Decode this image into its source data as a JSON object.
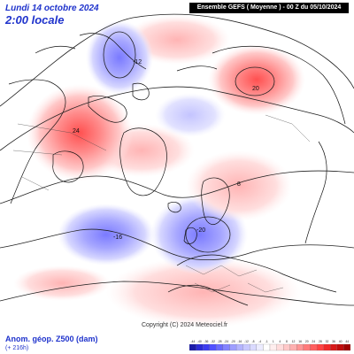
{
  "header": {
    "date": "Lundi 14 octobre 2024",
    "time": "2:00 locale",
    "run_info": "Ensemble GEFS  ( Moyenne )  - 00 Z du 05/10/2024"
  },
  "footer": {
    "field_label": "Anom. géop. Z500 (dam)",
    "lead_time": "(+ 216h)",
    "copyright": "Copyright (C) 2024 Meteociel.fr"
  },
  "legend": {
    "ticks": [
      "-44",
      "-40",
      "-36",
      "-32",
      "-28",
      "-24",
      "-20",
      "-16",
      "-12",
      "-8",
      "-4",
      "-1",
      "1",
      "4",
      "8",
      "12",
      "16",
      "20",
      "24",
      "28",
      "32",
      "36",
      "40",
      "44"
    ],
    "colors": [
      "#1a1aa8",
      "#2b2bd6",
      "#3c3cf0",
      "#5050ff",
      "#6a6aff",
      "#8484ff",
      "#9e9eff",
      "#b4b4ff",
      "#c8c8ff",
      "#dadaff",
      "#ececff",
      "#ffffff",
      "#ffeeee",
      "#ffdcdc",
      "#ffc8c8",
      "#ffb0b0",
      "#ff9696",
      "#ff7a7a",
      "#ff5e5e",
      "#ff4242",
      "#f02828",
      "#d81818",
      "#c00c0c",
      "#a00000"
    ]
  },
  "anomalies": [
    {
      "name": "alaska-negative",
      "label": "-12",
      "sign": "negative",
      "intensity": 0.55
    },
    {
      "name": "canada-positive",
      "label": "24",
      "sign": "positive",
      "intensity": 0.7
    },
    {
      "name": "siberia-positive",
      "label": "20",
      "sign": "positive",
      "intensity": 0.65
    },
    {
      "name": "atlantic-negative",
      "label": "-16",
      "sign": "negative",
      "intensity": 0.6
    },
    {
      "name": "europe-negative",
      "label": "-20",
      "sign": "negative",
      "intensity": 0.7
    },
    {
      "name": "russia-positive",
      "label": "8",
      "sign": "positive",
      "intensity": 0.4
    }
  ],
  "colors": {
    "title": "#1f33cc",
    "coast": "#111111",
    "contour": "#222222"
  }
}
